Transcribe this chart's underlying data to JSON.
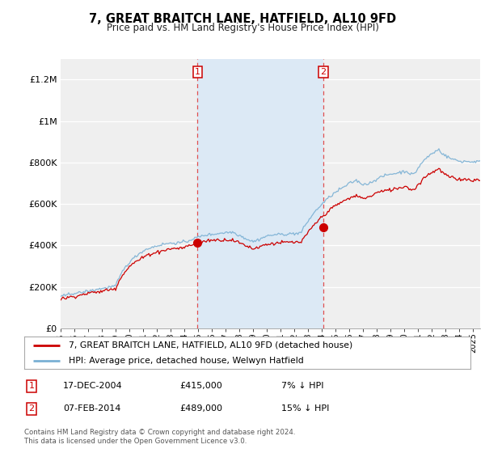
{
  "title": "7, GREAT BRAITCH LANE, HATFIELD, AL10 9FD",
  "subtitle": "Price paid vs. HM Land Registry's House Price Index (HPI)",
  "ylim": [
    0,
    1300000
  ],
  "yticks": [
    0,
    200000,
    400000,
    600000,
    800000,
    1000000,
    1200000
  ],
  "ytick_labels": [
    "£0",
    "£200K",
    "£400K",
    "£600K",
    "£800K",
    "£1M",
    "£1.2M"
  ],
  "background_color": "#ffffff",
  "plot_bg_color": "#efefef",
  "highlight_bg_color": "#dce9f5",
  "sale1_date_num": 2004.96,
  "sale1_price": 415000,
  "sale1_date_str": "17-DEC-2004",
  "sale1_pct": "7% ↓ HPI",
  "sale2_date_num": 2014.1,
  "sale2_price": 489000,
  "sale2_date_str": "07-FEB-2014",
  "sale2_pct": "15% ↓ HPI",
  "legend_line1": "7, GREAT BRAITCH LANE, HATFIELD, AL10 9FD (detached house)",
  "legend_line2": "HPI: Average price, detached house, Welwyn Hatfield",
  "footer1": "Contains HM Land Registry data © Crown copyright and database right 2024.",
  "footer2": "This data is licensed under the Open Government Licence v3.0.",
  "line_color_red": "#cc0000",
  "line_color_blue": "#7ab0d4",
  "highlight_xmin": 2004.96,
  "highlight_xmax": 2014.1,
  "xmin": 1995.0,
  "xmax": 2025.5
}
